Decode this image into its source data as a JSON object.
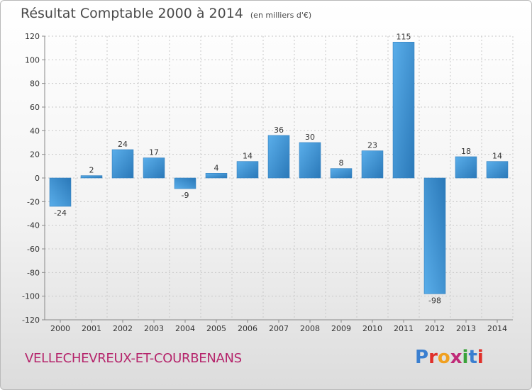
{
  "header": {
    "title": "Résultat Comptable 2000 à 2014",
    "unit": "(en milliers d'€)"
  },
  "commune": "VELLECHEVREUX-ET-COURBENANS",
  "logo": {
    "text": "Proxiti",
    "letters": [
      {
        "ch": "P",
        "color": "#3a7fd0"
      },
      {
        "ch": "r",
        "color": "#e0302a"
      },
      {
        "ch": "o",
        "color": "#f0a020"
      },
      {
        "ch": "x",
        "color": "#c02a78"
      },
      {
        "ch": "i",
        "color": "#3aa23a"
      },
      {
        "ch": "t",
        "color": "#3a7fd0"
      },
      {
        "ch": "i",
        "color": "#e0302a"
      }
    ]
  },
  "colors": {
    "bar_light": "#5aaeea",
    "bar_dark": "#2a78b8",
    "grid": "#c8c8c8",
    "axis": "#888888",
    "commune": "#b5246b"
  },
  "chart_data": {
    "type": "bar",
    "title": "Résultat Comptable 2000 à 2014",
    "ylabel": "",
    "xlabel": "",
    "categories": [
      "2000",
      "2001",
      "2002",
      "2003",
      "2004",
      "2005",
      "2006",
      "2007",
      "2008",
      "2009",
      "2010",
      "2011",
      "2012",
      "2013",
      "2014"
    ],
    "values": [
      -24,
      2,
      24,
      17,
      -9,
      4,
      14,
      36,
      30,
      8,
      23,
      115,
      -98,
      18,
      14
    ],
    "ylim": [
      -120,
      120
    ],
    "yticks": [
      120,
      100,
      80,
      60,
      40,
      20,
      0,
      -20,
      -40,
      -60,
      -80,
      -100,
      -120
    ],
    "grid": true,
    "legend": "none"
  }
}
